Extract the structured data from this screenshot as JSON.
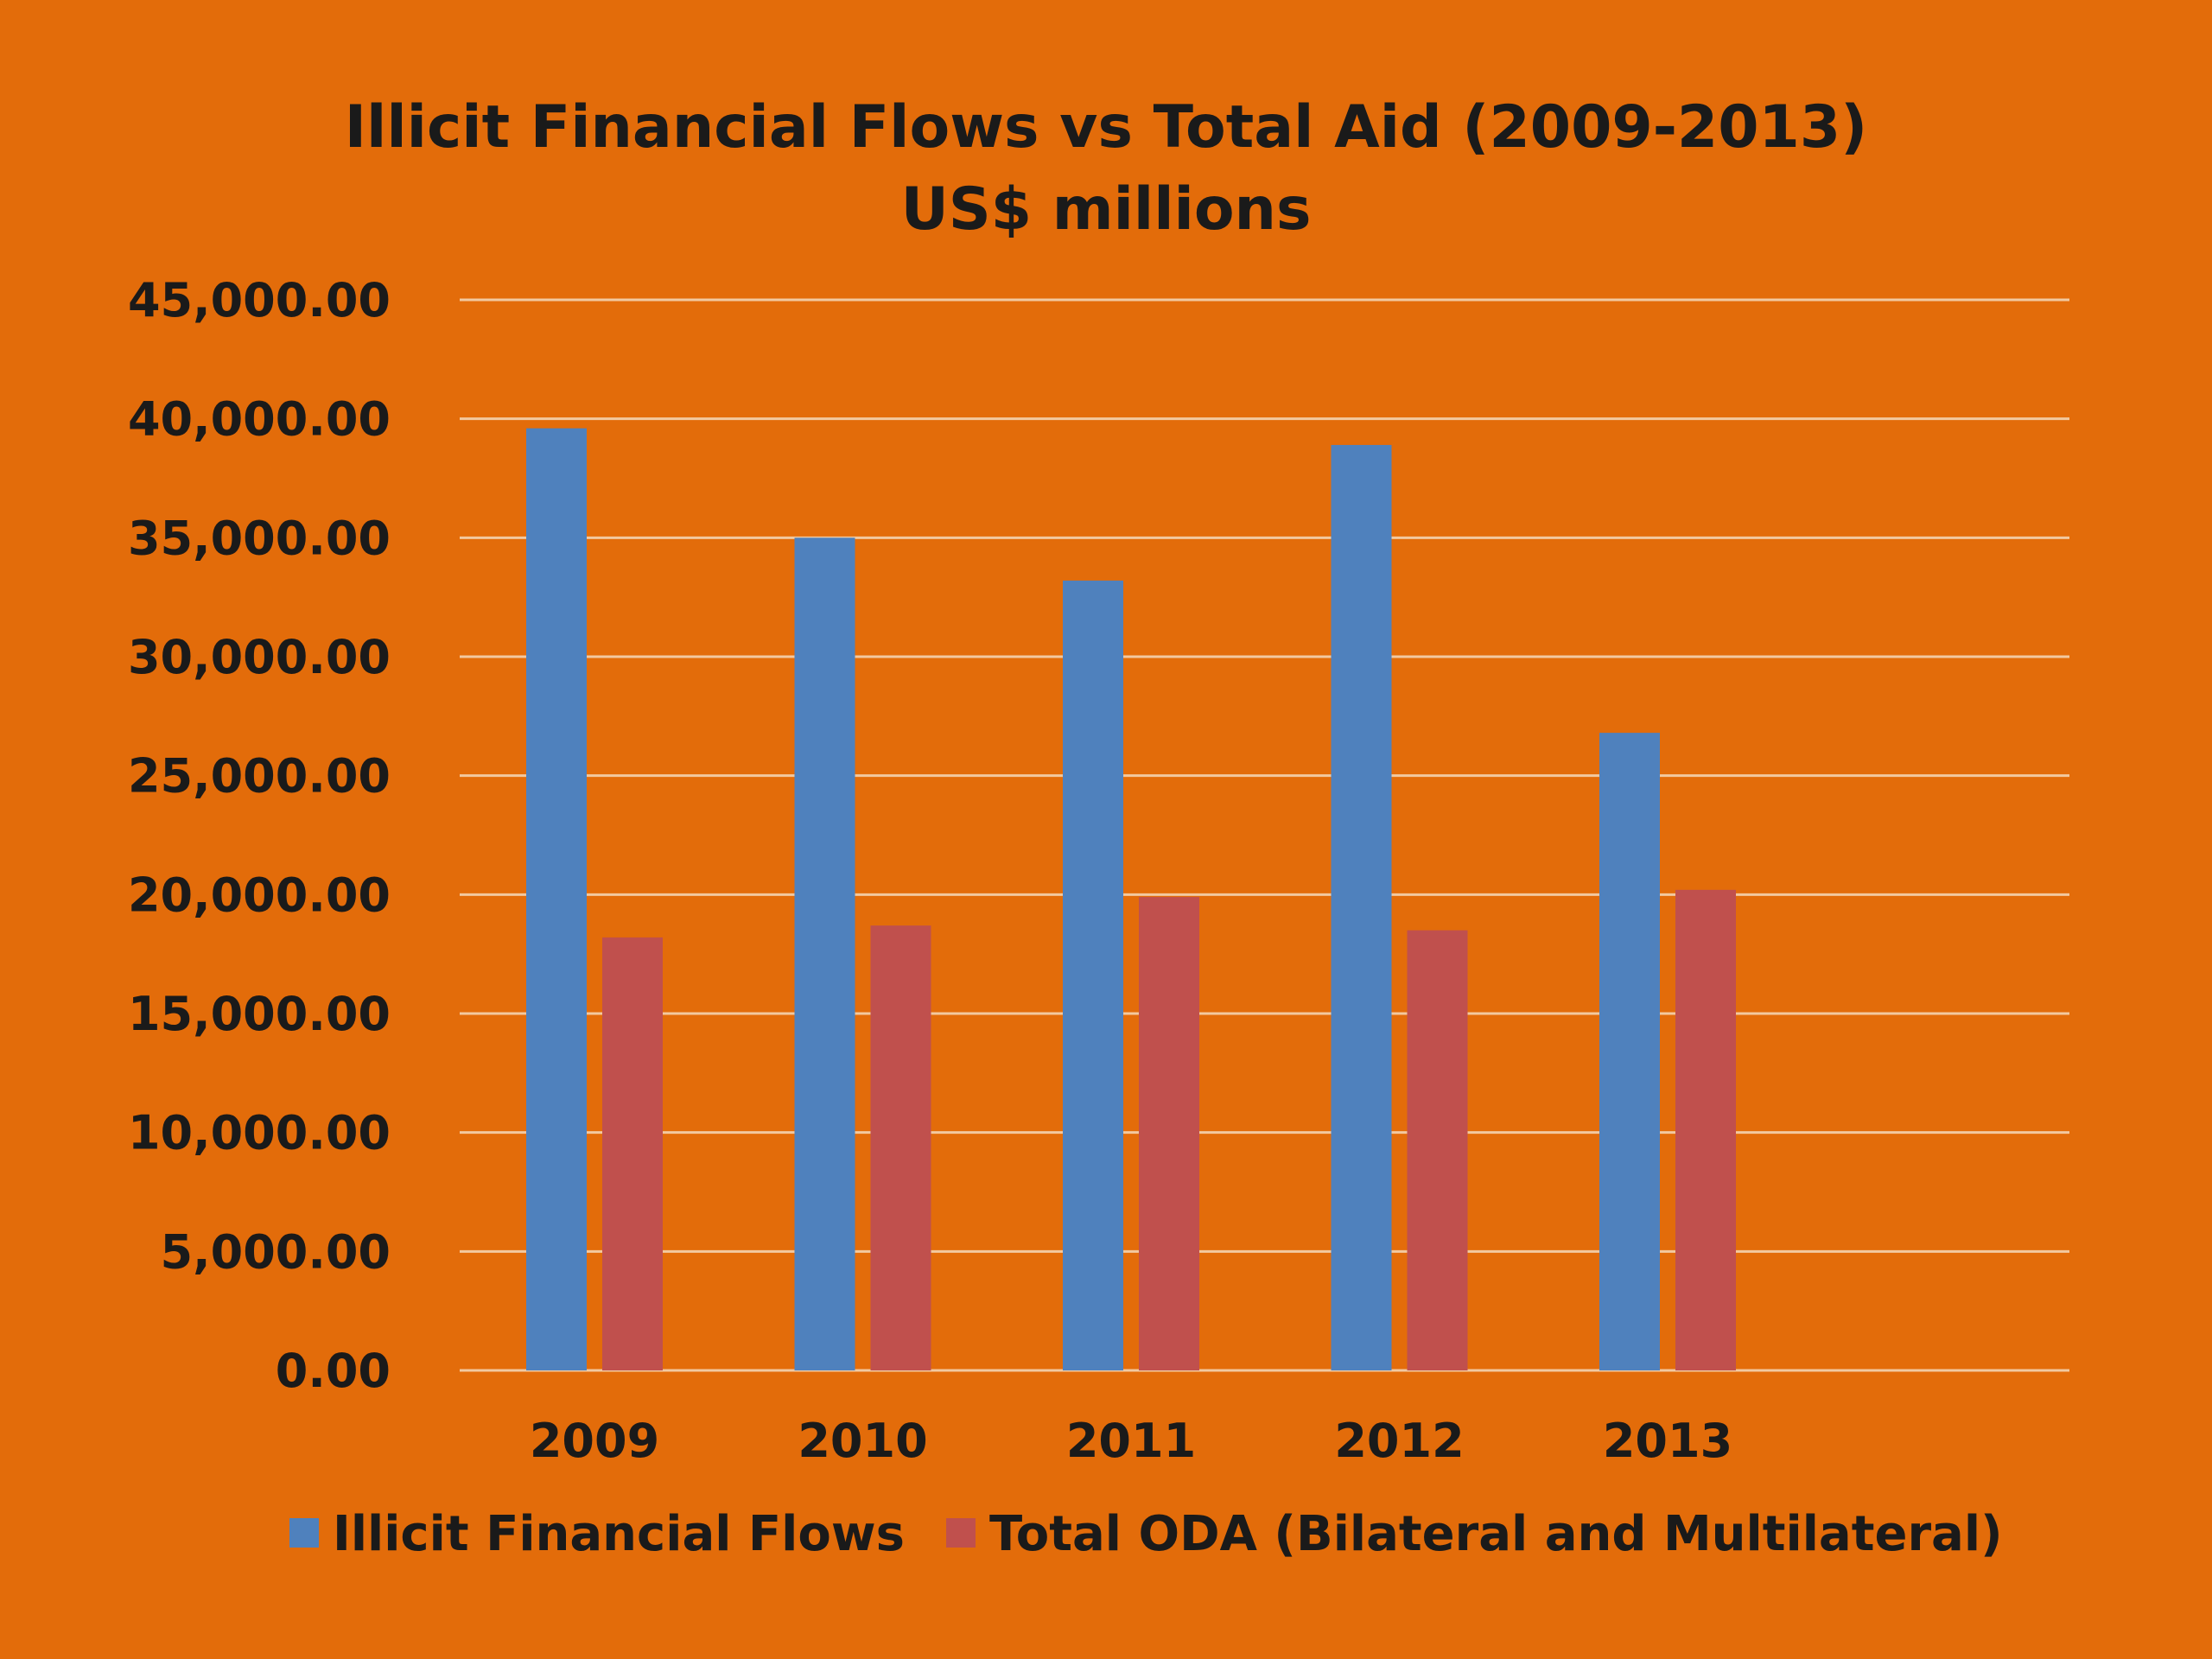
{
  "chart_data": {
    "type": "bar",
    "title": "Illicit Financial Flows vs Total Aid (2009-2013)",
    "subtitle": "US$ millions",
    "xlabel": "",
    "ylabel": "",
    "categories": [
      "2009",
      "2010",
      "2011",
      "2012",
      "2013"
    ],
    "series": [
      {
        "name": "Illicit Financial Flows",
        "color": "#4f81bd",
        "values": [
          39600,
          35000,
          33200,
          38900,
          26800
        ]
      },
      {
        "name": "Total ODA (Bilateral and Multilateral)",
        "color": "#c0504d",
        "values": [
          18200,
          18700,
          19900,
          18500,
          20200
        ]
      }
    ],
    "ylim": [
      0,
      45000
    ],
    "ytick_values": [
      0,
      5000,
      10000,
      15000,
      20000,
      25000,
      30000,
      35000,
      40000,
      45000
    ],
    "ytick_labels": [
      "0.00",
      "5,000.00",
      "10,000.00",
      "15,000.00",
      "20,000.00",
      "25,000.00",
      "30,000.00",
      "35,000.00",
      "40,000.00",
      "45,000.00"
    ],
    "grid": true,
    "gridline_color": "#f2c9a0",
    "background_color": "#e36c0a",
    "legend_position": "bottom"
  }
}
